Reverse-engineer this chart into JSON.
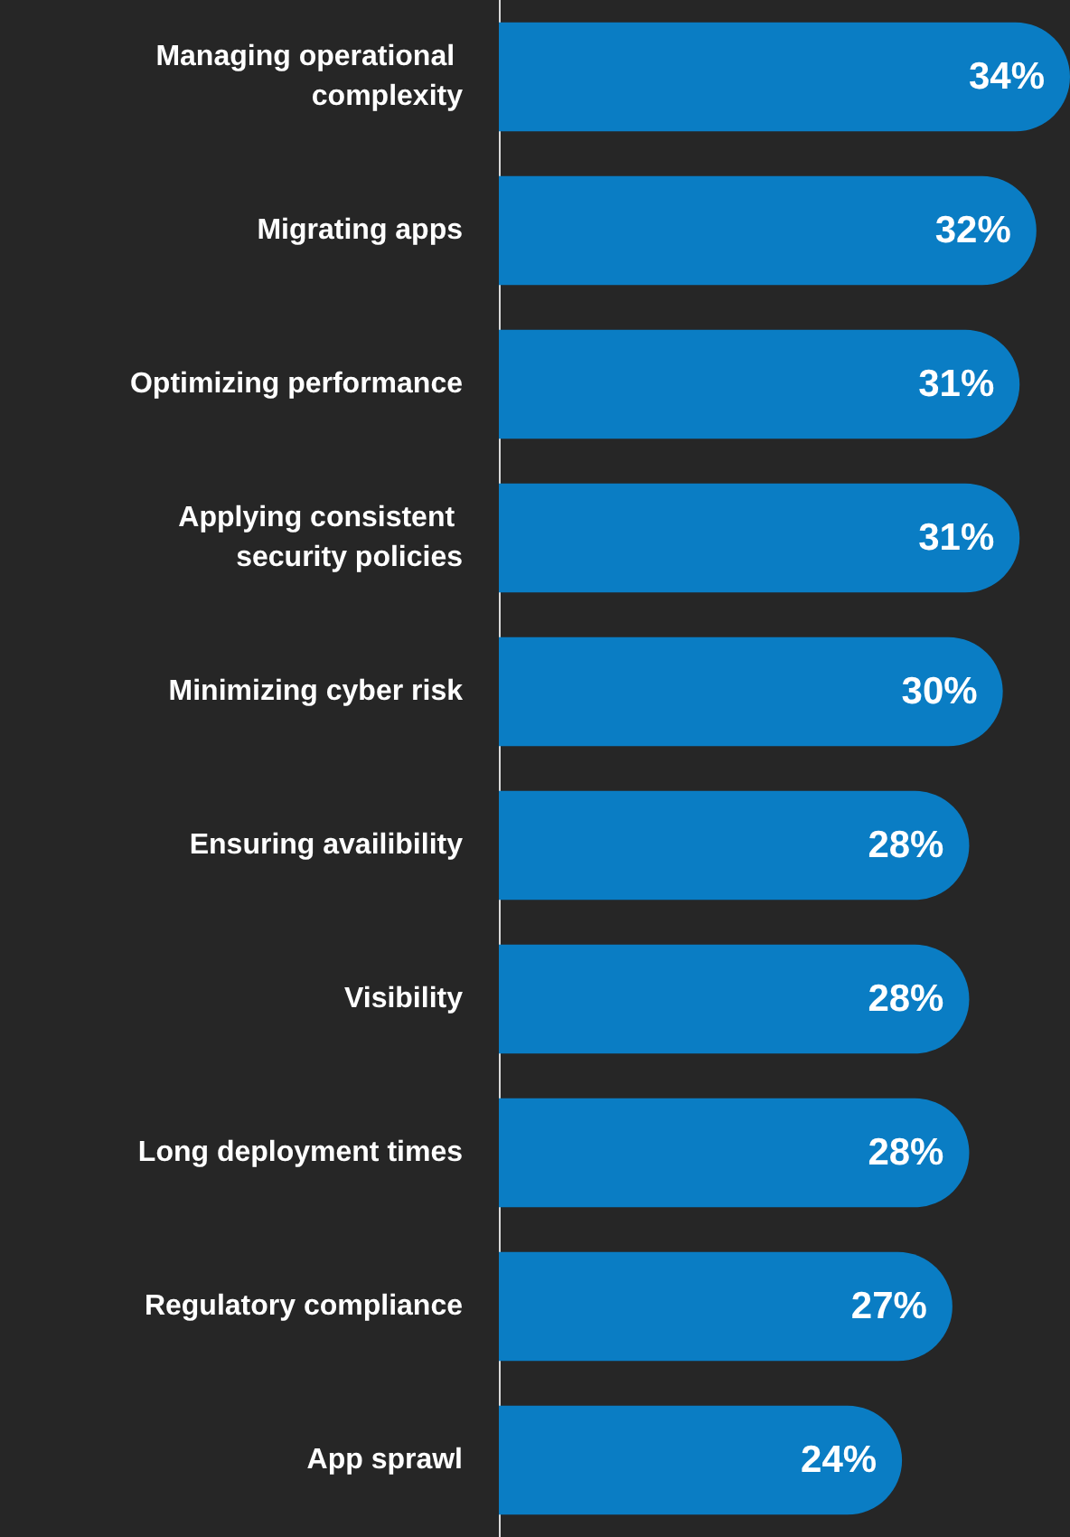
{
  "chart_data": {
    "type": "bar",
    "orientation": "horizontal",
    "categories": [
      "Managing operational complexity",
      "Migrating apps",
      "Optimizing performance",
      "Applying consistent security policies",
      "Minimizing cyber risk",
      "Ensuring availibility",
      "Visibility",
      "Long deployment times",
      "Regulatory compliance",
      "App sprawl"
    ],
    "values": [
      34,
      32,
      31,
      31,
      30,
      28,
      28,
      28,
      27,
      24
    ],
    "value_labels": [
      "34%",
      "32%",
      "31%",
      "31%",
      "30%",
      "28%",
      "28%",
      "28%",
      "27%",
      "24%"
    ],
    "color": "#0a7dc4"
  }
}
